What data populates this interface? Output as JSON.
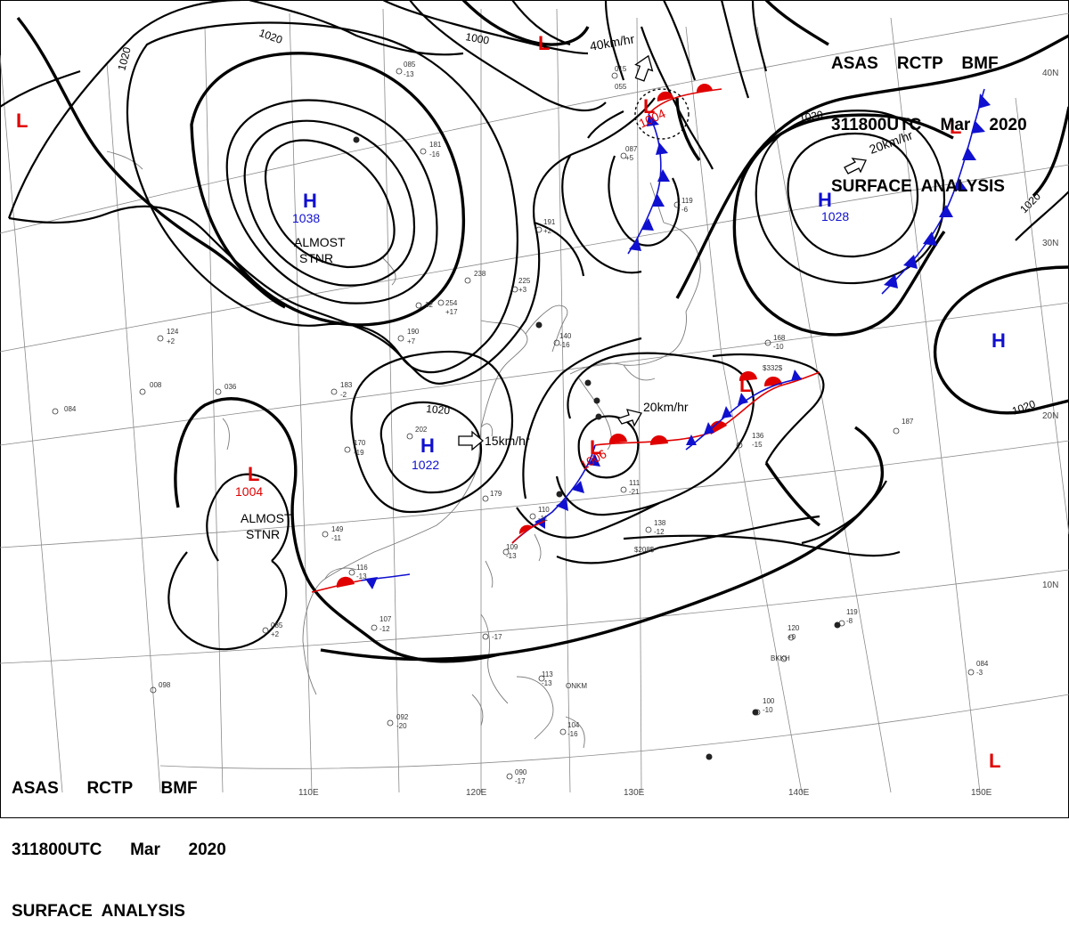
{
  "header_top_right": {
    "line1": "ASAS    RCTP    BMF",
    "line2": "311800UTC    Mar    2020",
    "line3": "SURFACE  ANALYSIS"
  },
  "header_bottom_left": {
    "line1": "ASAS      RCTP      BMF",
    "line2": "311800UTC      Mar      2020",
    "line3": "SURFACE  ANALYSIS"
  },
  "grid_labels": {
    "lon": [
      "110E",
      "120E",
      "130E",
      "140E",
      "150E"
    ],
    "lat": [
      "40N",
      "30N",
      "20N",
      "10N"
    ]
  },
  "isobar_labels": [
    "1020",
    "1020",
    "1000",
    "1020",
    "1020",
    "1020",
    "1020"
  ],
  "highs": [
    {
      "letter": "H",
      "pressure": "1038",
      "note": [
        "ALMOST",
        "STNR"
      ]
    },
    {
      "letter": "H",
      "pressure": "1028",
      "speed": "20km/hr"
    },
    {
      "letter": "H",
      "pressure": "1022",
      "speed": "15km/hr"
    },
    {
      "letter": "H",
      "pressure": ""
    }
  ],
  "lows": [
    {
      "letter": "L",
      "pressure": "1004",
      "note": [
        "ALMOST",
        "STNR"
      ]
    },
    {
      "letter": "L",
      "pressure": "1004",
      "speed": "40km/hr"
    },
    {
      "letter": "L",
      "pressure": "1006",
      "speed": "20km/hr"
    },
    {
      "letter": "L",
      "pressure": ""
    },
    {
      "letter": "L",
      "pressure": ""
    },
    {
      "letter": "L",
      "pressure": ""
    },
    {
      "letter": "L",
      "pressure": ""
    },
    {
      "letter": "L",
      "pressure": ""
    }
  ],
  "station_values": [
    "085",
    "-13",
    "181",
    "-16",
    "238",
    "254",
    "+17",
    "190",
    "+7",
    "202",
    "170",
    "-19",
    "183",
    "-2",
    "036",
    "008",
    "084",
    "124",
    "+2",
    "107",
    "-12",
    "149",
    "-11",
    "116",
    "-13",
    "085",
    "+2",
    "110",
    "-11",
    "179",
    "109",
    "-13",
    "120",
    "+0",
    "-17",
    "113",
    "-13",
    "ONKM",
    "104",
    "-16",
    "092",
    "-20",
    "090",
    "-17",
    "098",
    "136",
    "-15",
    "168",
    "-10",
    "$332$",
    "187",
    "111",
    "-21",
    "138",
    "-12",
    "$208$",
    "140",
    "-16",
    "015",
    "055",
    "087",
    "+5",
    "119",
    "-6",
    "191",
    "+2",
    "225",
    "+3",
    "12",
    "BKKH",
    "084",
    "-3",
    "100",
    "-10",
    "119",
    "-8"
  ],
  "colors": {
    "isobar": "#000000",
    "high": "#1010d0",
    "low": "#e00000",
    "cold_front": "#1010d0",
    "warm_front": "#e00000",
    "grid": "#8a8a8a"
  }
}
